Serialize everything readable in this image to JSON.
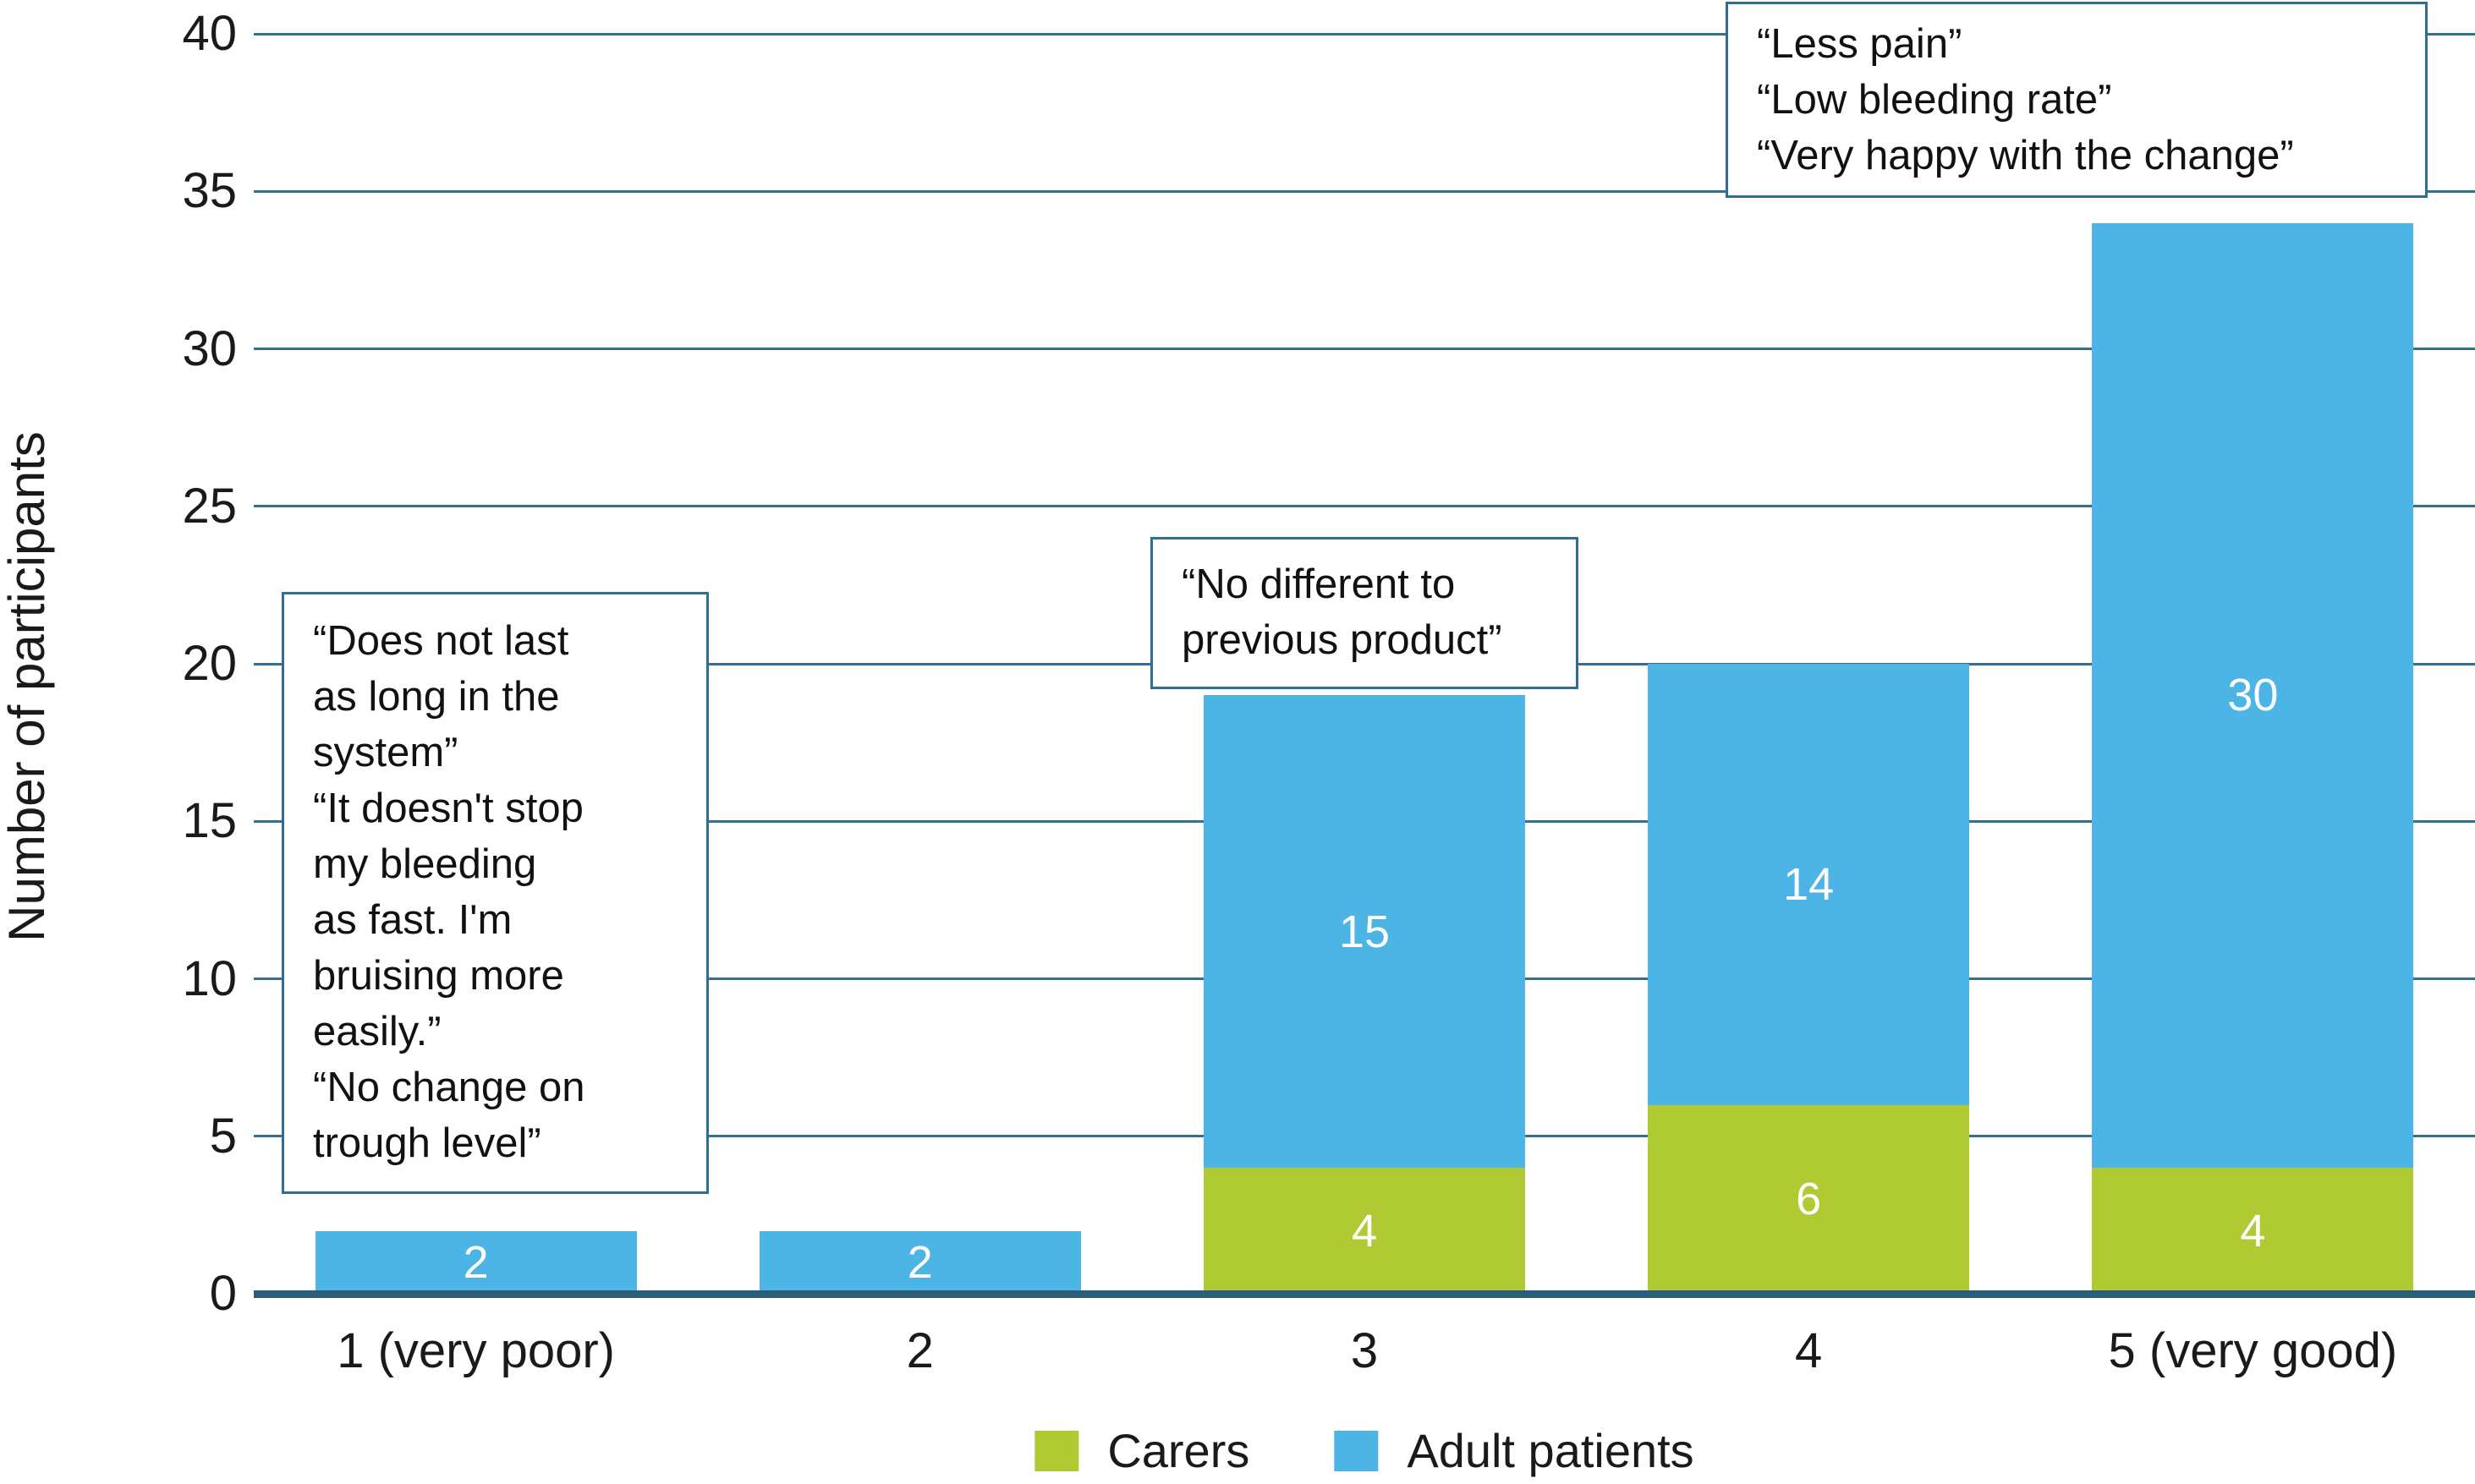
{
  "colors": {
    "carers": "#AFCA33",
    "adult_patients": "#4DB5E6",
    "axis_line": "#2A5E78",
    "gridline": "#35718E",
    "annotation_border": "#2E6E91",
    "bar_value_label": "#FFFFFF",
    "text": "#1A1A1A"
  },
  "chart_data": {
    "type": "bar",
    "stacked": true,
    "categories": [
      "1 (very poor)",
      "2",
      "3",
      "4",
      "5 (very good)"
    ],
    "series": [
      {
        "name": "Carers",
        "color": "#AFCA33",
        "values": [
          0,
          0,
          4,
          6,
          4
        ]
      },
      {
        "name": "Adult patients",
        "color": "#4DB5E6",
        "values": [
          2,
          2,
          15,
          14,
          30
        ]
      }
    ],
    "totals": [
      2,
      2,
      19,
      20,
      34
    ],
    "title": "",
    "xlabel": "",
    "ylabel": "Number of participants",
    "ylim": [
      0,
      40
    ],
    "ytick_step": 5,
    "grid": true,
    "legend_position": "bottom-center",
    "annotations": [
      {
        "name": "low-score-quotes",
        "text": "“Does not last\nas long in the\nsystem”\n“It doesn't stop\nmy bleeding\nas fast. I'm\nbruising more\neasily.”\n“No change on\ntrough level”"
      },
      {
        "name": "mid-score-quote",
        "text": "“No different to\nprevious product”"
      },
      {
        "name": "high-score-quotes",
        "text": "“Less pain”\n“Low bleeding rate”\n“Very happy with the change”"
      }
    ]
  }
}
